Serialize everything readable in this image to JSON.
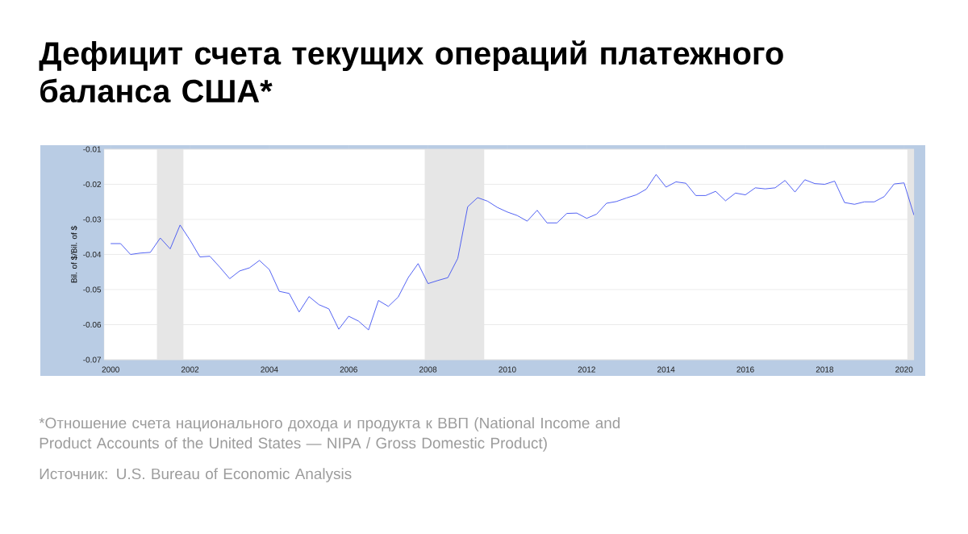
{
  "chart_data": {
    "type": "line",
    "title": "Дефицит счета текущих операций платежного баланса США*",
    "ylabel": "Bil. of $/Bil. of $",
    "annotations": [
      "*Отношение счета национального дохода и продукта к ВВП (National Income and Product Accounts of the United States — NIPA / Gross Domestic Product)",
      "Источник: U.S. Bureau of Economic Analysis"
    ],
    "x": [
      "2000-01",
      "2000-04",
      "2000-07",
      "2000-10",
      "2001-01",
      "2001-04",
      "2001-07",
      "2001-10",
      "2002-01",
      "2002-04",
      "2002-07",
      "2002-10",
      "2003-01",
      "2003-04",
      "2003-07",
      "2003-10",
      "2004-01",
      "2004-04",
      "2004-07",
      "2004-10",
      "2005-01",
      "2005-04",
      "2005-07",
      "2005-10",
      "2006-01",
      "2006-04",
      "2006-07",
      "2006-10",
      "2007-01",
      "2007-04",
      "2007-07",
      "2007-10",
      "2008-01",
      "2008-04",
      "2008-07",
      "2008-10",
      "2009-01",
      "2009-04",
      "2009-07",
      "2009-10",
      "2010-01",
      "2010-04",
      "2010-07",
      "2010-10",
      "2011-01",
      "2011-04",
      "2011-07",
      "2011-10",
      "2012-01",
      "2012-04",
      "2012-07",
      "2012-10",
      "2013-01",
      "2013-04",
      "2013-07",
      "2013-10",
      "2014-01",
      "2014-04",
      "2014-07",
      "2014-10",
      "2015-01",
      "2015-04",
      "2015-07",
      "2015-10",
      "2016-01",
      "2016-04",
      "2016-07",
      "2016-10",
      "2017-01",
      "2017-04",
      "2017-07",
      "2017-10",
      "2018-01",
      "2018-04",
      "2018-07",
      "2018-10",
      "2019-01",
      "2019-04",
      "2019-07",
      "2019-10",
      "2020-01",
      "2020-04"
    ],
    "series": [
      {
        "color": "#3f51f2",
        "values": [
          -0.0369,
          -0.0369,
          -0.04,
          -0.0396,
          -0.0394,
          -0.0353,
          -0.0384,
          -0.0316,
          -0.0359,
          -0.0407,
          -0.0405,
          -0.0436,
          -0.0469,
          -0.0447,
          -0.0438,
          -0.0417,
          -0.0443,
          -0.0505,
          -0.0511,
          -0.0564,
          -0.052,
          -0.0543,
          -0.0555,
          -0.0613,
          -0.0576,
          -0.059,
          -0.0615,
          -0.0531,
          -0.0548,
          -0.0521,
          -0.0466,
          -0.0426,
          -0.0483,
          -0.0474,
          -0.0466,
          -0.0411,
          -0.0264,
          -0.0238,
          -0.0248,
          -0.0266,
          -0.0279,
          -0.0289,
          -0.0305,
          -0.0274,
          -0.031,
          -0.031,
          -0.0283,
          -0.0282,
          -0.0297,
          -0.0285,
          -0.0254,
          -0.0249,
          -0.0239,
          -0.023,
          -0.0214,
          -0.0172,
          -0.0208,
          -0.0193,
          -0.0197,
          -0.0232,
          -0.0232,
          -0.022,
          -0.0247,
          -0.0225,
          -0.023,
          -0.021,
          -0.0213,
          -0.021,
          -0.0189,
          -0.0222,
          -0.0187,
          -0.0198,
          -0.02,
          -0.0191,
          -0.0252,
          -0.0257,
          -0.025,
          -0.025,
          -0.0235,
          -0.0199,
          -0.0196,
          -0.0288
        ]
      }
    ],
    "bands": [
      {
        "axis": "x",
        "from": "2001-03",
        "to": "2001-11",
        "color": "#e6e6e6"
      },
      {
        "axis": "x",
        "from": "2007-12",
        "to": "2009-06",
        "color": "#e6e6e6"
      },
      {
        "axis": "x",
        "from": "2020-02",
        "to": "2020-04",
        "color": "#e6e6e6"
      }
    ],
    "xlim": [
      "1999-11",
      "2020-04"
    ],
    "xticks": [
      "2000",
      "2002",
      "2004",
      "2006",
      "2008",
      "2010",
      "2012",
      "2014",
      "2016",
      "2018",
      "2020"
    ],
    "ylim": [
      -0.07,
      -0.01
    ],
    "yticks": [
      -0.07,
      -0.06,
      -0.05,
      -0.04,
      -0.03,
      -0.02,
      -0.01
    ],
    "grid": "y",
    "legend": false,
    "marker": "none",
    "line_style": "solid"
  }
}
